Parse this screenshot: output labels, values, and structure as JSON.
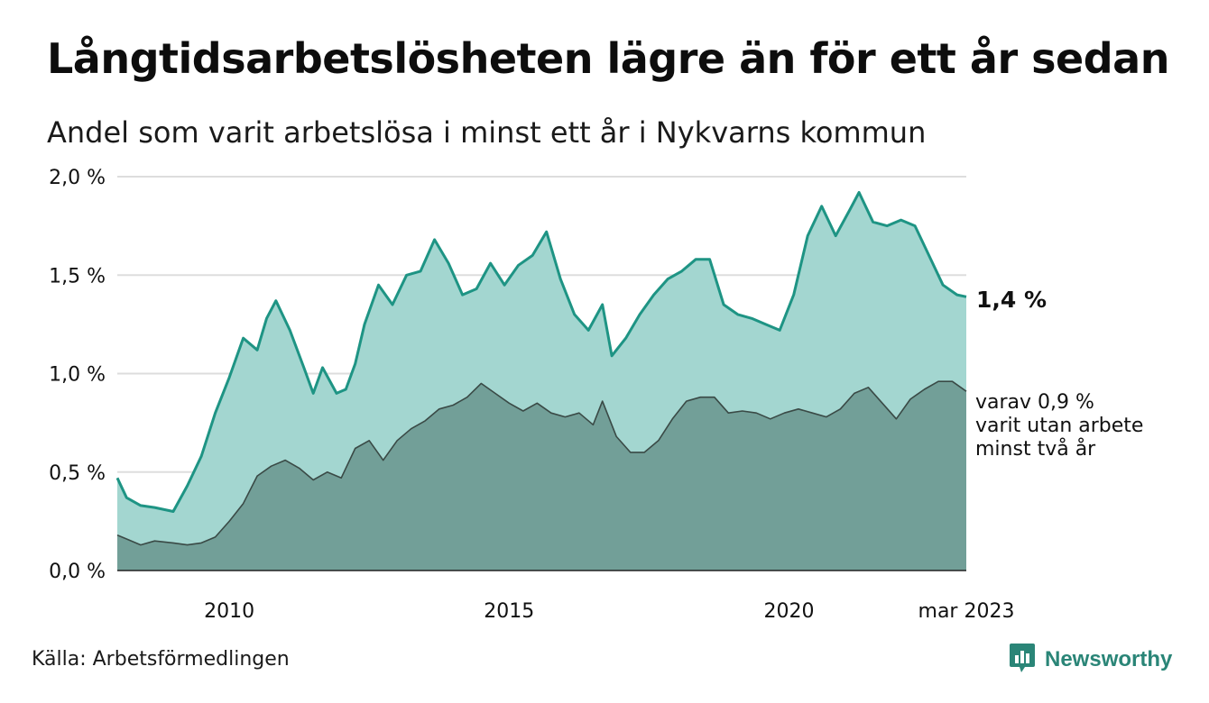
{
  "title": "Långtidsarbetslösheten lägre än för ett år sedan",
  "subtitle": "Andel som varit arbetslösa i minst ett år i Nykvarns kommun",
  "source": "Källa: Arbetsförmedlingen",
  "brand": "Newsworthy",
  "colors": {
    "total_line": "#1e9484",
    "total_fill": "#a3d6d0",
    "long_line": "#3a4a46",
    "long_fill": "#729f98",
    "grid": "#dddddd",
    "brand": "#2a8577"
  },
  "chart_data": {
    "type": "area",
    "x_start": "2008-01",
    "x_end": "2023-03",
    "ylim": [
      0,
      2.0
    ],
    "y_ticks": [
      {
        "value": 0.0,
        "label": "0,0 %"
      },
      {
        "value": 0.5,
        "label": "0,5 %"
      },
      {
        "value": 1.0,
        "label": "1,0 %"
      },
      {
        "value": 1.5,
        "label": "1,5 %"
      },
      {
        "value": 2.0,
        "label": "2,0 %"
      }
    ],
    "x_ticks": [
      {
        "date": "2010-01",
        "label": "2010"
      },
      {
        "date": "2015-01",
        "label": "2015"
      },
      {
        "date": "2020-01",
        "label": "2020"
      },
      {
        "date": "2023-03",
        "label": "mar 2023"
      }
    ],
    "grid": true,
    "end_labels": {
      "total": "1,4 %",
      "long": [
        "varav 0,9 %",
        "varit utan arbete",
        "minst två år"
      ]
    },
    "series": [
      {
        "key": "total",
        "points": [
          [
            "2008-01",
            0.47
          ],
          [
            "2008-03",
            0.37
          ],
          [
            "2008-06",
            0.33
          ],
          [
            "2008-09",
            0.32
          ],
          [
            "2009-01",
            0.3
          ],
          [
            "2009-04",
            0.43
          ],
          [
            "2009-07",
            0.58
          ],
          [
            "2009-10",
            0.8
          ],
          [
            "2010-01",
            0.98
          ],
          [
            "2010-04",
            1.18
          ],
          [
            "2010-07",
            1.12
          ],
          [
            "2010-09",
            1.28
          ],
          [
            "2010-11",
            1.37
          ],
          [
            "2011-02",
            1.22
          ],
          [
            "2011-05",
            1.03
          ],
          [
            "2011-07",
            0.9
          ],
          [
            "2011-09",
            1.03
          ],
          [
            "2011-12",
            0.9
          ],
          [
            "2012-02",
            0.92
          ],
          [
            "2012-04",
            1.05
          ],
          [
            "2012-06",
            1.25
          ],
          [
            "2012-09",
            1.45
          ],
          [
            "2012-12",
            1.35
          ],
          [
            "2013-03",
            1.5
          ],
          [
            "2013-06",
            1.52
          ],
          [
            "2013-09",
            1.68
          ],
          [
            "2013-12",
            1.56
          ],
          [
            "2014-03",
            1.4
          ],
          [
            "2014-06",
            1.43
          ],
          [
            "2014-09",
            1.56
          ],
          [
            "2014-12",
            1.45
          ],
          [
            "2015-03",
            1.55
          ],
          [
            "2015-06",
            1.6
          ],
          [
            "2015-09",
            1.72
          ],
          [
            "2015-12",
            1.48
          ],
          [
            "2016-03",
            1.3
          ],
          [
            "2016-06",
            1.22
          ],
          [
            "2016-09",
            1.35
          ],
          [
            "2016-11",
            1.09
          ],
          [
            "2017-02",
            1.18
          ],
          [
            "2017-05",
            1.3
          ],
          [
            "2017-08",
            1.4
          ],
          [
            "2017-11",
            1.48
          ],
          [
            "2018-02",
            1.52
          ],
          [
            "2018-05",
            1.58
          ],
          [
            "2018-08",
            1.58
          ],
          [
            "2018-11",
            1.35
          ],
          [
            "2019-02",
            1.3
          ],
          [
            "2019-05",
            1.28
          ],
          [
            "2019-08",
            1.25
          ],
          [
            "2019-11",
            1.22
          ],
          [
            "2020-02",
            1.4
          ],
          [
            "2020-05",
            1.7
          ],
          [
            "2020-08",
            1.85
          ],
          [
            "2020-11",
            1.7
          ],
          [
            "2021-02",
            1.83
          ],
          [
            "2021-04",
            1.92
          ],
          [
            "2021-07",
            1.77
          ],
          [
            "2021-10",
            1.75
          ],
          [
            "2022-01",
            1.78
          ],
          [
            "2022-04",
            1.75
          ],
          [
            "2022-07",
            1.6
          ],
          [
            "2022-10",
            1.45
          ],
          [
            "2023-01",
            1.4
          ],
          [
            "2023-03",
            1.39
          ]
        ]
      },
      {
        "key": "long",
        "points": [
          [
            "2008-01",
            0.18
          ],
          [
            "2008-03",
            0.16
          ],
          [
            "2008-06",
            0.13
          ],
          [
            "2008-09",
            0.15
          ],
          [
            "2009-01",
            0.14
          ],
          [
            "2009-04",
            0.13
          ],
          [
            "2009-07",
            0.14
          ],
          [
            "2009-10",
            0.17
          ],
          [
            "2010-01",
            0.25
          ],
          [
            "2010-04",
            0.34
          ],
          [
            "2010-07",
            0.48
          ],
          [
            "2010-10",
            0.53
          ],
          [
            "2011-01",
            0.56
          ],
          [
            "2011-04",
            0.52
          ],
          [
            "2011-07",
            0.46
          ],
          [
            "2011-10",
            0.5
          ],
          [
            "2012-01",
            0.47
          ],
          [
            "2012-04",
            0.62
          ],
          [
            "2012-07",
            0.66
          ],
          [
            "2012-10",
            0.56
          ],
          [
            "2013-01",
            0.66
          ],
          [
            "2013-04",
            0.72
          ],
          [
            "2013-07",
            0.76
          ],
          [
            "2013-10",
            0.82
          ],
          [
            "2014-01",
            0.84
          ],
          [
            "2014-04",
            0.88
          ],
          [
            "2014-07",
            0.95
          ],
          [
            "2014-10",
            0.9
          ],
          [
            "2015-01",
            0.85
          ],
          [
            "2015-04",
            0.81
          ],
          [
            "2015-07",
            0.85
          ],
          [
            "2015-10",
            0.8
          ],
          [
            "2016-01",
            0.78
          ],
          [
            "2016-04",
            0.8
          ],
          [
            "2016-07",
            0.74
          ],
          [
            "2016-09",
            0.86
          ],
          [
            "2016-12",
            0.68
          ],
          [
            "2017-03",
            0.6
          ],
          [
            "2017-06",
            0.6
          ],
          [
            "2017-09",
            0.66
          ],
          [
            "2017-12",
            0.77
          ],
          [
            "2018-03",
            0.86
          ],
          [
            "2018-06",
            0.88
          ],
          [
            "2018-09",
            0.88
          ],
          [
            "2018-12",
            0.8
          ],
          [
            "2019-03",
            0.81
          ],
          [
            "2019-06",
            0.8
          ],
          [
            "2019-09",
            0.77
          ],
          [
            "2019-12",
            0.8
          ],
          [
            "2020-03",
            0.82
          ],
          [
            "2020-06",
            0.8
          ],
          [
            "2020-09",
            0.78
          ],
          [
            "2020-12",
            0.82
          ],
          [
            "2021-03",
            0.9
          ],
          [
            "2021-06",
            0.93
          ],
          [
            "2021-09",
            0.85
          ],
          [
            "2021-12",
            0.77
          ],
          [
            "2022-03",
            0.87
          ],
          [
            "2022-06",
            0.92
          ],
          [
            "2022-09",
            0.96
          ],
          [
            "2022-12",
            0.96
          ],
          [
            "2023-03",
            0.91
          ]
        ]
      }
    ]
  }
}
